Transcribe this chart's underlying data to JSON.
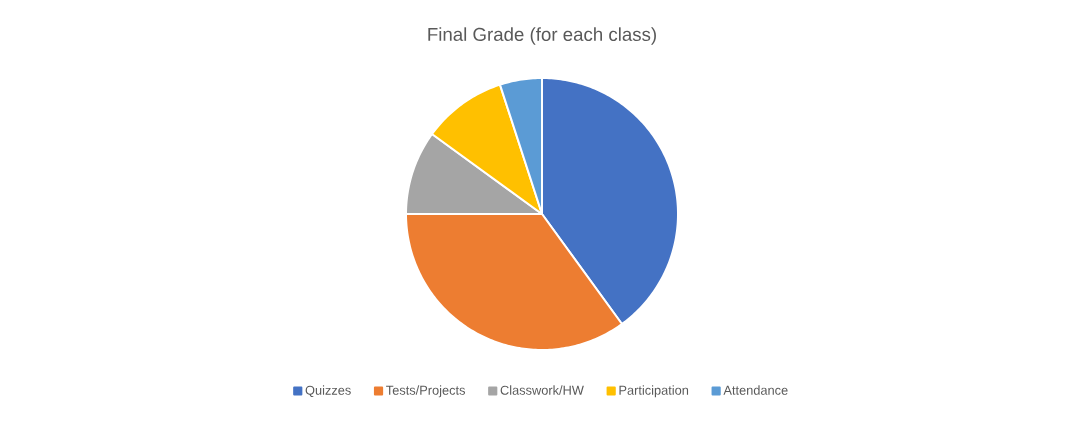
{
  "chart_data": {
    "type": "pie",
    "title": "Final Grade (for each class)",
    "categories": [
      "Quizzes",
      "Tests/Projects",
      "Classwork/HW",
      "Participation",
      "Attendance"
    ],
    "values": [
      40,
      35,
      10,
      10,
      5
    ],
    "colors": [
      "#4472c4",
      "#ed7d31",
      "#a5a5a5",
      "#ffc000",
      "#5b9bd5"
    ],
    "legend": "bottom"
  }
}
